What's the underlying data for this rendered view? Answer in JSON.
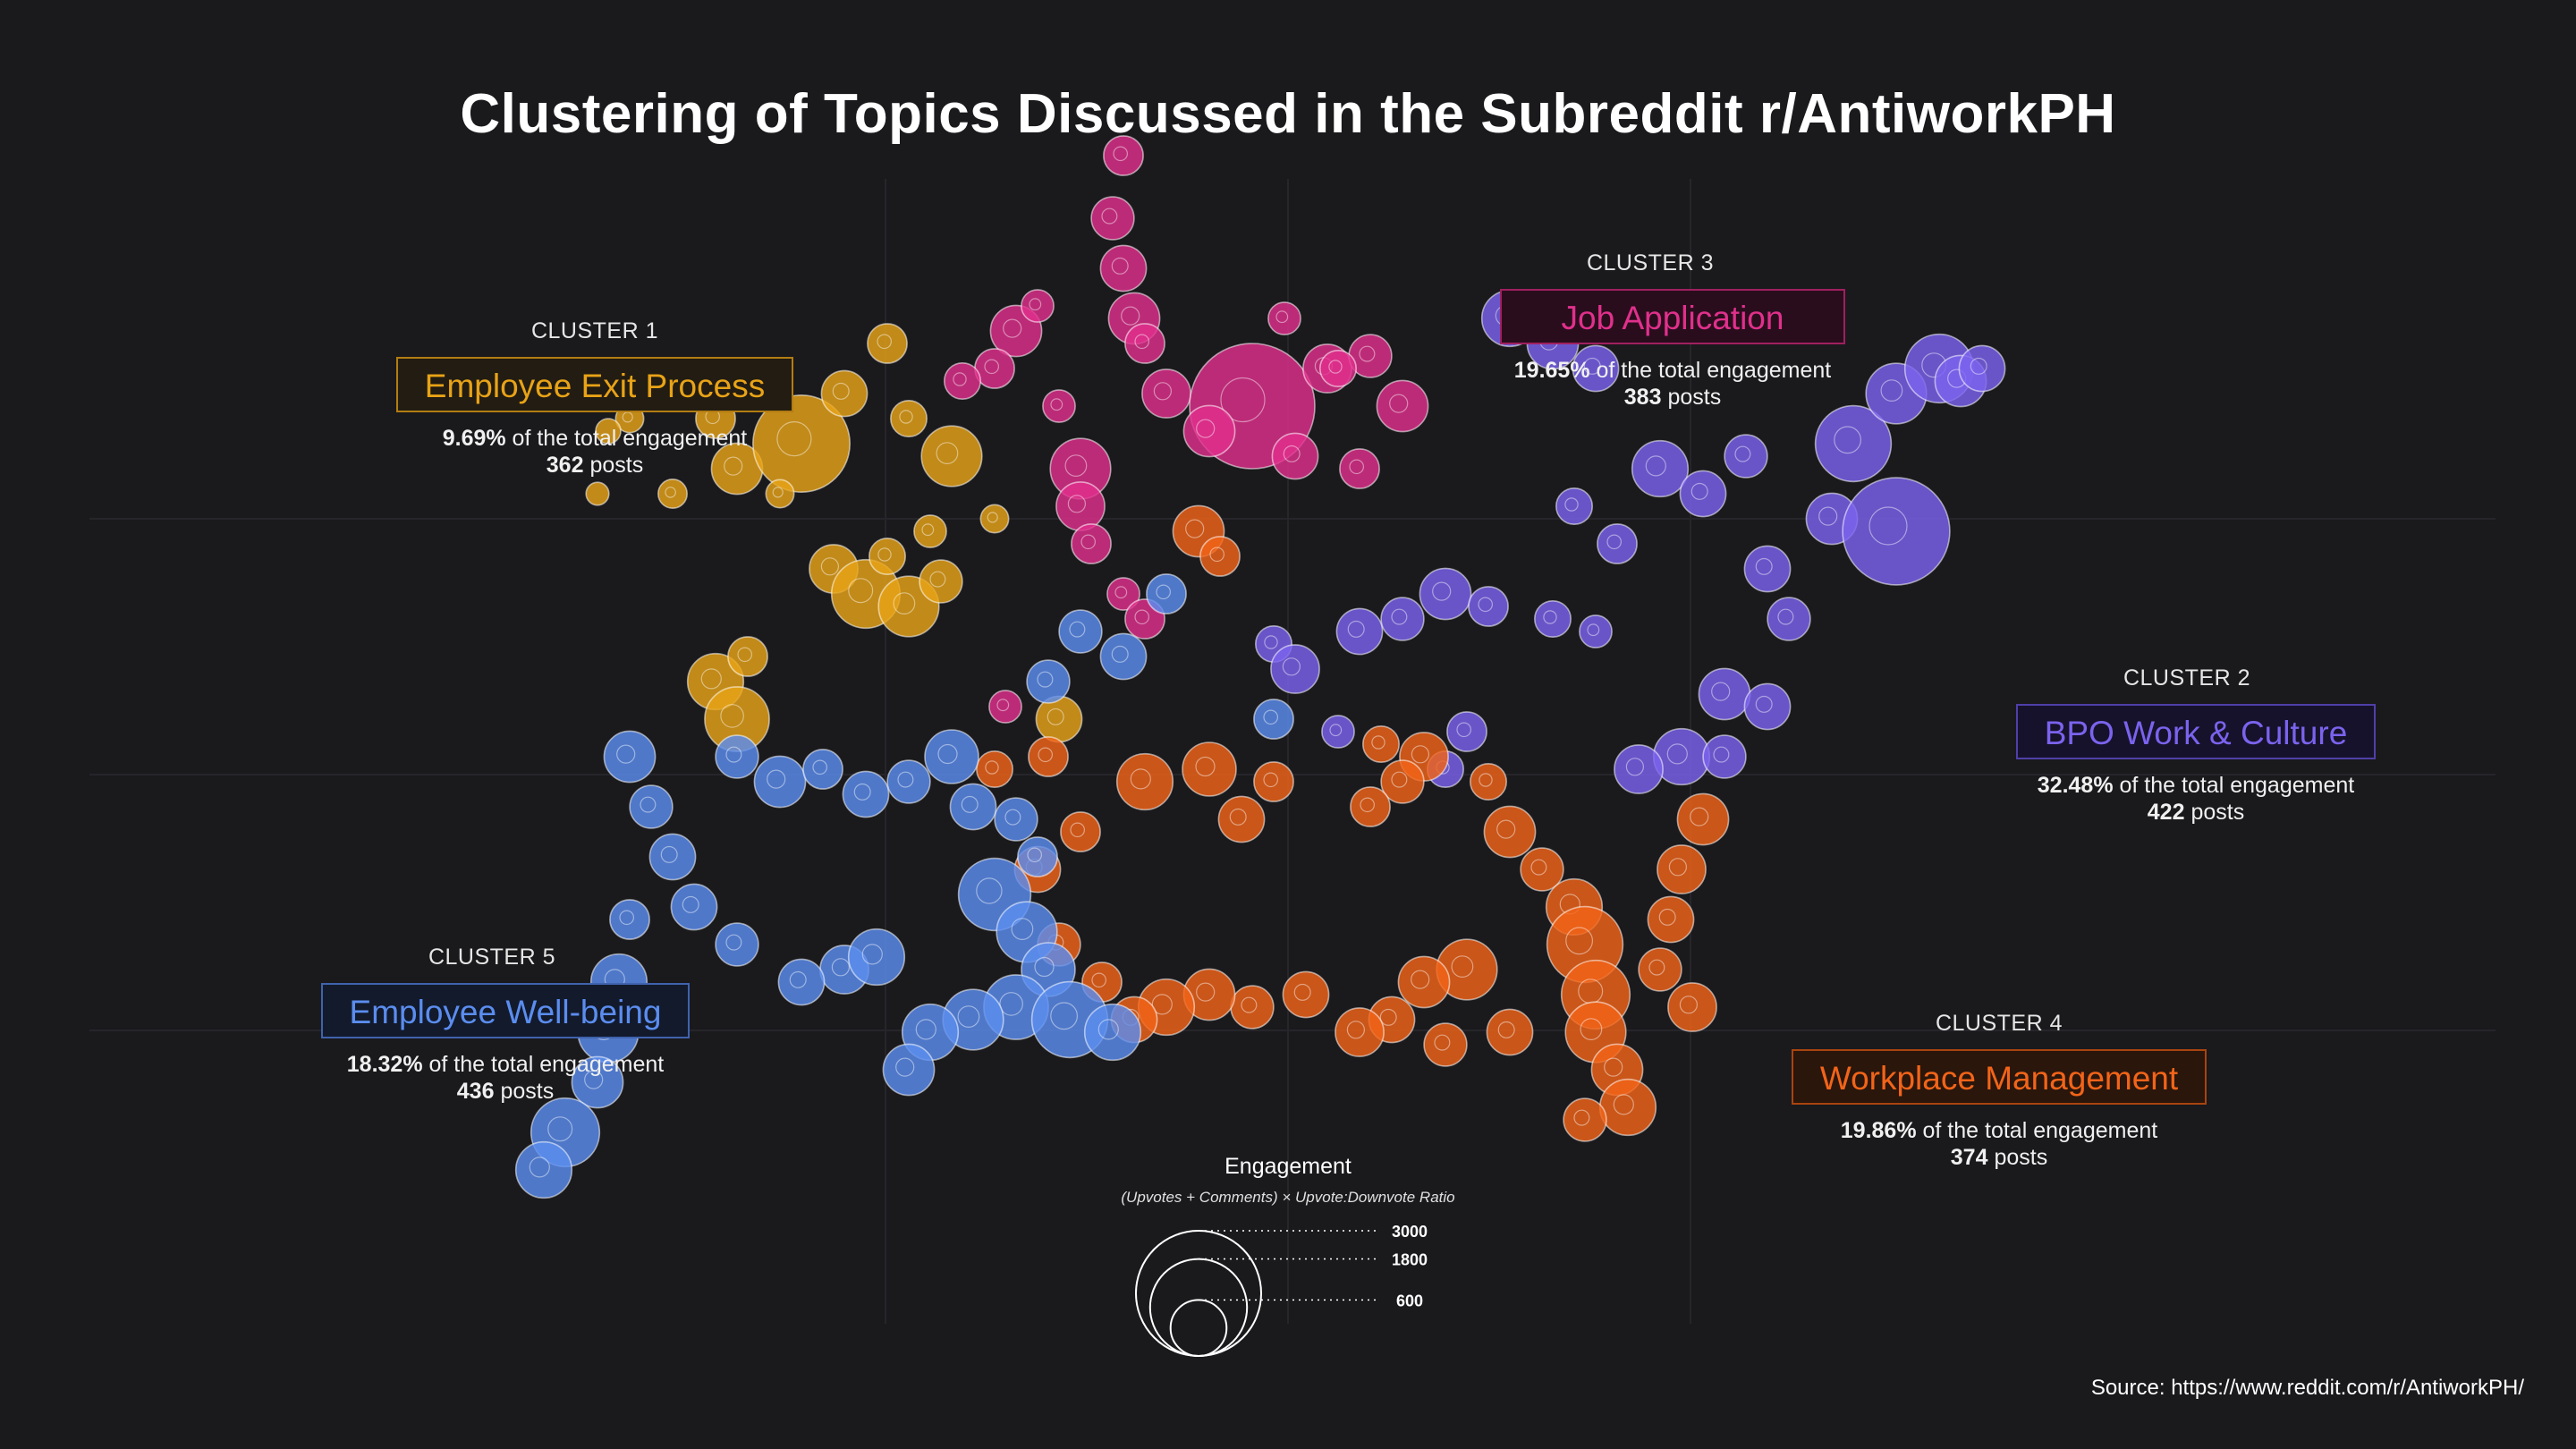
{
  "title": "Clustering of Topics Discussed in the Subreddit r/AntiworkPH",
  "source": "Source: https://www.reddit.com/r/AntiworkPH/",
  "colors": {
    "background": "#1a191c",
    "cluster1": "#e8a317",
    "cluster2": "#7b63ee",
    "cluster3": "#e0308c",
    "cluster4": "#f26419",
    "cluster5": "#5b8def"
  },
  "clusters": [
    {
      "id": "CLUSTER 1",
      "name": "Employee Exit Process",
      "pct": "9.69%",
      "pct_suffix": " of the total engagement",
      "posts": "362",
      "posts_suffix": " posts"
    },
    {
      "id": "CLUSTER 2",
      "name": "BPO Work & Culture",
      "pct": "32.48%",
      "pct_suffix": " of the total engagement",
      "posts": "422",
      "posts_suffix": " posts"
    },
    {
      "id": "CLUSTER 3",
      "name": "Job Application",
      "pct": "19.65%",
      "pct_suffix": " of the total engagement",
      "posts": "383",
      "posts_suffix": " posts"
    },
    {
      "id": "CLUSTER 4",
      "name": "Workplace Management",
      "pct": "19.86%",
      "pct_suffix": " of the total engagement",
      "posts": "374",
      "posts_suffix": " posts"
    },
    {
      "id": "CLUSTER 5",
      "name": "Employee Well-being",
      "pct": "18.32%",
      "pct_suffix": " of the total engagement",
      "posts": "436",
      "posts_suffix": " posts"
    }
  ],
  "legend": {
    "title": "Engagement",
    "subtitle": "(Upvotes + Comments) × Upvote:Downvote Ratio",
    "sizes": [
      3000,
      1800,
      600
    ],
    "labels": [
      "3000",
      "1800",
      "600"
    ]
  },
  "chart_data": {
    "type": "scatter",
    "title": "Clustering of Topics Discussed in the Subreddit r/AntiworkPH",
    "encoding": "bubble area ∝ engagement; colour = topic cluster",
    "grid": true,
    "series": [
      {
        "name": "Employee Exit Process",
        "cluster": 1,
        "points": [
          [
            -1.2,
            1.6,
            160
          ],
          [
            -1.0,
            1.9,
            300
          ],
          [
            -0.9,
            1.7,
            500
          ],
          [
            -0.6,
            1.8,
            1800
          ],
          [
            -0.4,
            2.0,
            400
          ],
          [
            -0.2,
            2.2,
            300
          ],
          [
            -0.1,
            1.9,
            250
          ],
          [
            0.1,
            1.75,
            700
          ],
          [
            -0.8,
            2.0,
            250
          ],
          [
            -1.4,
            1.9,
            150
          ],
          [
            -1.5,
            1.85,
            120
          ],
          [
            -0.45,
            1.3,
            450
          ],
          [
            -0.3,
            1.2,
            900
          ],
          [
            -0.1,
            1.15,
            700
          ],
          [
            0.05,
            1.25,
            350
          ],
          [
            -0.2,
            1.35,
            250
          ],
          [
            -1.0,
            0.85,
            600
          ],
          [
            -0.9,
            0.7,
            800
          ],
          [
            -0.85,
            0.95,
            300
          ],
          [
            0.3,
            1.5,
            150
          ],
          [
            0.0,
            1.45,
            200
          ],
          [
            -0.7,
            1.6,
            150
          ],
          [
            -1.55,
            1.6,
            100
          ],
          [
            0.6,
            0.7,
            400
          ]
        ]
      },
      {
        "name": "BPO Work & Culture",
        "cluster": 2,
        "points": [
          [
            2.7,
            2.3,
            600
          ],
          [
            2.9,
            2.2,
            500
          ],
          [
            3.1,
            2.1,
            400
          ],
          [
            3.4,
            1.7,
            600
          ],
          [
            3.6,
            1.6,
            400
          ],
          [
            3.8,
            1.75,
            350
          ],
          [
            4.2,
            1.5,
            500
          ],
          [
            4.5,
            1.45,
            2200
          ],
          [
            4.3,
            1.8,
            1100
          ],
          [
            4.5,
            2.0,
            700
          ],
          [
            4.7,
            2.1,
            900
          ],
          [
            4.8,
            2.05,
            500
          ],
          [
            4.9,
            2.1,
            400
          ],
          [
            3.2,
            1.4,
            300
          ],
          [
            3.0,
            1.55,
            250
          ],
          [
            3.9,
            1.3,
            400
          ],
          [
            4.0,
            1.1,
            350
          ],
          [
            2.0,
            1.05,
            400
          ],
          [
            2.2,
            1.1,
            350
          ],
          [
            2.4,
            1.2,
            500
          ],
          [
            2.6,
            1.15,
            300
          ],
          [
            2.9,
            1.1,
            250
          ],
          [
            3.1,
            1.05,
            200
          ],
          [
            1.6,
            1.0,
            250
          ],
          [
            1.7,
            0.9,
            450
          ],
          [
            3.7,
            0.8,
            500
          ],
          [
            3.9,
            0.75,
            400
          ],
          [
            3.5,
            0.55,
            600
          ],
          [
            3.3,
            0.5,
            450
          ],
          [
            2.5,
            0.65,
            300
          ],
          [
            2.4,
            0.5,
            250
          ],
          [
            3.7,
            0.55,
            350
          ],
          [
            1.9,
            0.65,
            200
          ]
        ]
      },
      {
        "name": "Job Application",
        "cluster": 3,
        "points": [
          [
            0.9,
            2.95,
            300
          ],
          [
            0.85,
            2.7,
            350
          ],
          [
            0.9,
            2.5,
            400
          ],
          [
            0.95,
            2.3,
            500
          ],
          [
            1.0,
            2.2,
            300
          ],
          [
            1.1,
            2.0,
            450
          ],
          [
            1.5,
            1.95,
            3000
          ],
          [
            1.3,
            1.85,
            500
          ],
          [
            1.7,
            1.75,
            400
          ],
          [
            1.85,
            2.1,
            450
          ],
          [
            2.05,
            2.15,
            350
          ],
          [
            2.2,
            1.95,
            500
          ],
          [
            0.7,
            1.7,
            700
          ],
          [
            0.7,
            1.55,
            450
          ],
          [
            0.75,
            1.4,
            300
          ],
          [
            0.9,
            1.2,
            200
          ],
          [
            0.4,
            2.25,
            500
          ],
          [
            0.3,
            2.1,
            300
          ],
          [
            0.15,
            2.05,
            250
          ],
          [
            0.5,
            2.35,
            200
          ],
          [
            1.65,
            2.3,
            200
          ],
          [
            1.9,
            2.1,
            250
          ],
          [
            2.0,
            1.7,
            300
          ],
          [
            0.6,
            1.95,
            200
          ],
          [
            0.35,
            0.75,
            200
          ],
          [
            1.0,
            1.1,
            300
          ]
        ]
      },
      {
        "name": "Workplace Management",
        "cluster": 4,
        "points": [
          [
            1.25,
            1.45,
            500
          ],
          [
            1.35,
            1.35,
            300
          ],
          [
            2.3,
            0.55,
            450
          ],
          [
            2.2,
            0.45,
            350
          ],
          [
            2.05,
            0.35,
            300
          ],
          [
            2.1,
            0.6,
            250
          ],
          [
            2.6,
            0.45,
            250
          ],
          [
            2.7,
            0.25,
            500
          ],
          [
            2.85,
            0.1,
            350
          ],
          [
            3.0,
            -0.05,
            600
          ],
          [
            3.05,
            -0.2,
            1100
          ],
          [
            3.1,
            -0.4,
            900
          ],
          [
            3.1,
            -0.55,
            700
          ],
          [
            3.2,
            -0.7,
            500
          ],
          [
            3.25,
            -0.85,
            600
          ],
          [
            3.05,
            -0.9,
            350
          ],
          [
            2.5,
            -0.3,
            700
          ],
          [
            2.3,
            -0.35,
            500
          ],
          [
            2.15,
            -0.5,
            400
          ],
          [
            2.0,
            -0.55,
            450
          ],
          [
            1.75,
            -0.4,
            400
          ],
          [
            1.5,
            -0.45,
            350
          ],
          [
            1.3,
            -0.4,
            500
          ],
          [
            1.1,
            -0.45,
            600
          ],
          [
            0.95,
            -0.5,
            400
          ],
          [
            0.8,
            -0.35,
            300
          ],
          [
            0.6,
            -0.2,
            350
          ],
          [
            0.5,
            0.1,
            400
          ],
          [
            0.7,
            0.25,
            300
          ],
          [
            1.0,
            0.45,
            600
          ],
          [
            1.3,
            0.5,
            550
          ],
          [
            1.45,
            0.3,
            400
          ],
          [
            1.6,
            0.45,
            300
          ],
          [
            0.3,
            0.5,
            250
          ],
          [
            3.6,
            0.3,
            500
          ],
          [
            3.5,
            0.1,
            450
          ],
          [
            3.45,
            -0.1,
            400
          ],
          [
            3.4,
            -0.3,
            350
          ],
          [
            3.55,
            -0.45,
            450
          ],
          [
            2.7,
            -0.55,
            400
          ],
          [
            2.4,
            -0.6,
            350
          ],
          [
            0.55,
            0.55,
            300
          ]
        ]
      },
      {
        "name": "Employee Well-being",
        "cluster": 5,
        "points": [
          [
            -1.4,
            0.55,
            500
          ],
          [
            -1.3,
            0.35,
            350
          ],
          [
            -1.2,
            0.15,
            400
          ],
          [
            -0.9,
            0.55,
            350
          ],
          [
            -0.7,
            0.45,
            500
          ],
          [
            -0.5,
            0.5,
            300
          ],
          [
            -0.3,
            0.4,
            400
          ],
          [
            -0.1,
            0.45,
            350
          ],
          [
            0.1,
            0.55,
            550
          ],
          [
            0.2,
            0.35,
            400
          ],
          [
            0.4,
            0.3,
            350
          ],
          [
            0.5,
            0.15,
            300
          ],
          [
            0.3,
            0.0,
            1000
          ],
          [
            0.45,
            -0.15,
            700
          ],
          [
            0.55,
            -0.3,
            550
          ],
          [
            0.4,
            -0.45,
            800
          ],
          [
            0.2,
            -0.5,
            700
          ],
          [
            0.0,
            -0.55,
            600
          ],
          [
            -0.1,
            -0.7,
            500
          ],
          [
            0.65,
            -0.5,
            1100
          ],
          [
            0.85,
            -0.55,
            600
          ],
          [
            -0.4,
            -0.3,
            450
          ],
          [
            -0.25,
            -0.25,
            600
          ],
          [
            -0.6,
            -0.35,
            400
          ],
          [
            -0.9,
            -0.2,
            350
          ],
          [
            -1.1,
            -0.05,
            400
          ],
          [
            -1.5,
            -0.55,
            700
          ],
          [
            -1.55,
            -0.75,
            500
          ],
          [
            -1.7,
            -0.95,
            900
          ],
          [
            -1.8,
            -1.1,
            600
          ],
          [
            -1.45,
            -0.35,
            600
          ],
          [
            -1.4,
            -0.1,
            300
          ],
          [
            0.55,
            0.85,
            350
          ],
          [
            0.9,
            0.95,
            400
          ],
          [
            1.1,
            1.2,
            300
          ],
          [
            0.7,
            1.05,
            350
          ],
          [
            1.6,
            0.7,
            300
          ]
        ]
      }
    ]
  }
}
